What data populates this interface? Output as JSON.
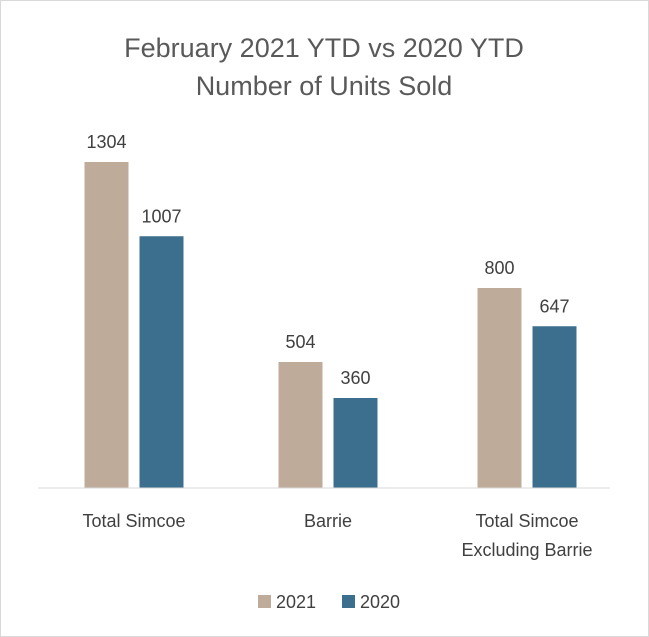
{
  "chart_data": {
    "type": "bar",
    "title": [
      "February 2021 YTD vs 2020 YTD",
      "Number of Units Sold"
    ],
    "categories": [
      [
        "Total Simcoe"
      ],
      [
        "Barrie"
      ],
      [
        "Total Simcoe",
        "Excluding Barrie"
      ]
    ],
    "series": [
      {
        "name": "2021",
        "values": [
          1304,
          504,
          800
        ],
        "color": "#bfab9a"
      },
      {
        "name": "2020",
        "values": [
          1007,
          360,
          647
        ],
        "color": "#3c6e8d"
      }
    ],
    "ylim": [
      0,
      1304
    ],
    "grid": false,
    "legend": "bottom",
    "data_labels": true
  }
}
